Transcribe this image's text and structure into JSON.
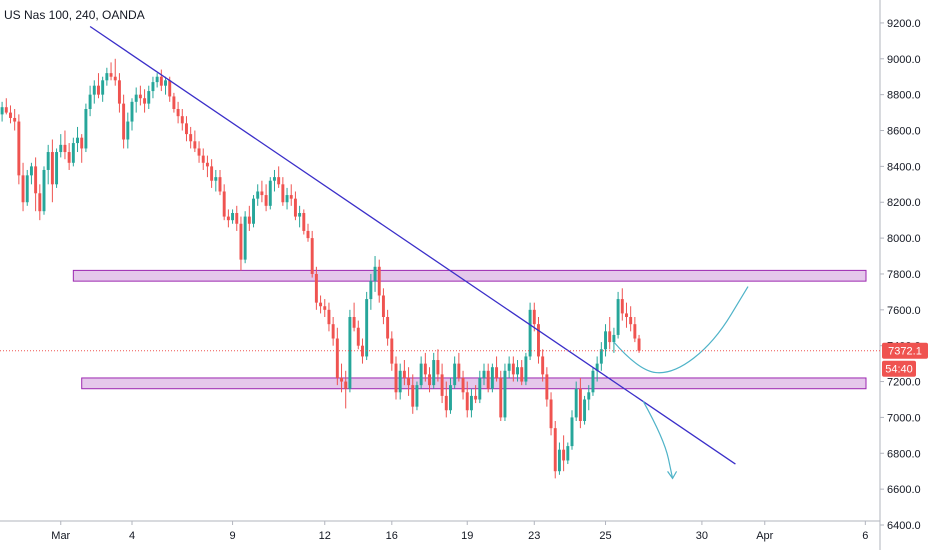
{
  "chart_data": {
    "type": "candlestick",
    "title": "US Nas 100, 240, OANDA",
    "price_axis": {
      "ylim": [
        6400,
        9300
      ],
      "ticks": [
        6400,
        6600,
        6800,
        7000,
        7200,
        7400,
        7600,
        7800,
        8000,
        8200,
        8400,
        8600,
        8800,
        9000,
        9200
      ],
      "tick_labels": [
        "6400.0",
        "6600.0",
        "6800.0",
        "7000.0",
        "7200.0",
        "7400.0",
        "7600.0",
        "7800.0",
        "8000.0",
        "8200.0",
        "8400.0",
        "8600.0",
        "8800.0",
        "9000.0",
        "9200.0"
      ]
    },
    "time_axis": {
      "bar_count": 210,
      "labels": [
        {
          "label": "Mar",
          "bar": 14
        },
        {
          "label": "4",
          "bar": 31
        },
        {
          "label": "9",
          "bar": 55
        },
        {
          "label": "12",
          "bar": 77
        },
        {
          "label": "16",
          "bar": 93
        },
        {
          "label": "19",
          "bar": 111
        },
        {
          "label": "23",
          "bar": 127
        },
        {
          "label": "25",
          "bar": 144
        },
        {
          "label": "30",
          "bar": 167
        },
        {
          "label": "Apr",
          "bar": 182
        },
        {
          "label": "6",
          "bar": 206
        }
      ]
    },
    "current_price": {
      "value": 7372.1,
      "label": "7372.1",
      "countdown": "54:40"
    },
    "zones": [
      {
        "low": 7760,
        "high": 7820,
        "bar_from": 17,
        "bar_to": 210
      },
      {
        "low": 7160,
        "high": 7220,
        "bar_from": 19,
        "bar_to": 210
      }
    ],
    "trendline": {
      "from": {
        "bar": 21,
        "value": 9180
      },
      "to": {
        "bar": 175,
        "value": 6740
      }
    },
    "projections": [
      {
        "points": [
          {
            "bar": 146,
            "value": 7420
          },
          {
            "bar": 152,
            "value": 7260
          },
          {
            "bar": 160,
            "value": 7240
          },
          {
            "bar": 170,
            "value": 7420
          },
          {
            "bar": 178,
            "value": 7730
          }
        ]
      },
      {
        "points": [
          {
            "bar": 153,
            "value": 7090
          },
          {
            "bar": 158,
            "value": 6880
          },
          {
            "bar": 160,
            "value": 6660
          }
        ]
      }
    ],
    "colors": {
      "up": "#26a69a",
      "down": "#ef5350",
      "zone_fill": "#e1bee7",
      "zone_border": "#9c27b0",
      "trendline": "#3b2fc9",
      "projection": "#4fb3c8",
      "price_line": "#ef5350",
      "badge": "#ef5350"
    },
    "candles": [
      [
        8690,
        8760,
        8650,
        8730
      ],
      [
        8730,
        8780,
        8690,
        8700
      ],
      [
        8700,
        8740,
        8640,
        8670
      ],
      [
        8670,
        8720,
        8600,
        8650
      ],
      [
        8650,
        8690,
        8300,
        8350
      ],
      [
        8350,
        8420,
        8150,
        8200
      ],
      [
        8200,
        8380,
        8180,
        8350
      ],
      [
        8350,
        8420,
        8300,
        8400
      ],
      [
        8400,
        8450,
        8150,
        8250
      ],
      [
        8250,
        8300,
        8100,
        8150
      ],
      [
        8150,
        8400,
        8130,
        8380
      ],
      [
        8380,
        8520,
        8300,
        8480
      ],
      [
        8480,
        8550,
        8200,
        8300
      ],
      [
        8300,
        8500,
        8280,
        8480
      ],
      [
        8480,
        8580,
        8450,
        8520
      ],
      [
        8520,
        8600,
        8440,
        8480
      ],
      [
        8480,
        8530,
        8380,
        8420
      ],
      [
        8420,
        8560,
        8400,
        8530
      ],
      [
        8530,
        8620,
        8480,
        8560
      ],
      [
        8560,
        8580,
        8420,
        8500
      ],
      [
        8500,
        8750,
        8480,
        8720
      ],
      [
        8720,
        8850,
        8680,
        8800
      ],
      [
        8800,
        8880,
        8750,
        8850
      ],
      [
        8850,
        8920,
        8780,
        8800
      ],
      [
        8800,
        8900,
        8760,
        8880
      ],
      [
        8880,
        8950,
        8850,
        8920
      ],
      [
        8920,
        8980,
        8880,
        8900
      ],
      [
        8900,
        9000,
        8850,
        8880
      ],
      [
        8880,
        8920,
        8700,
        8750
      ],
      [
        8750,
        8800,
        8500,
        8550
      ],
      [
        8550,
        8700,
        8500,
        8650
      ],
      [
        8650,
        8780,
        8600,
        8760
      ],
      [
        8760,
        8840,
        8700,
        8800
      ],
      [
        8800,
        8850,
        8740,
        8780
      ],
      [
        8780,
        8830,
        8700,
        8750
      ],
      [
        8750,
        8850,
        8720,
        8820
      ],
      [
        8820,
        8900,
        8780,
        8870
      ],
      [
        8870,
        8920,
        8840,
        8900
      ],
      [
        8900,
        8940,
        8820,
        8850
      ],
      [
        8850,
        8900,
        8800,
        8880
      ],
      [
        8880,
        8900,
        8760,
        8790
      ],
      [
        8790,
        8810,
        8700,
        8720
      ],
      [
        8720,
        8760,
        8640,
        8680
      ],
      [
        8680,
        8720,
        8600,
        8640
      ],
      [
        8640,
        8680,
        8540,
        8580
      ],
      [
        8580,
        8620,
        8500,
        8540
      ],
      [
        8540,
        8600,
        8480,
        8500
      ],
      [
        8500,
        8540,
        8420,
        8460
      ],
      [
        8460,
        8500,
        8380,
        8420
      ],
      [
        8420,
        8460,
        8340,
        8400
      ],
      [
        8400,
        8440,
        8280,
        8320
      ],
      [
        8320,
        8380,
        8260,
        8340
      ],
      [
        8340,
        8380,
        8240,
        8260
      ],
      [
        8260,
        8300,
        8100,
        8120
      ],
      [
        8120,
        8160,
        8060,
        8100
      ],
      [
        8100,
        8160,
        8080,
        8140
      ],
      [
        8140,
        8180,
        8040,
        8080
      ],
      [
        8080,
        8120,
        7820,
        7880
      ],
      [
        7880,
        8150,
        7860,
        8120
      ],
      [
        8120,
        8180,
        8040,
        8080
      ],
      [
        8080,
        8240,
        8060,
        8220
      ],
      [
        8220,
        8300,
        8180,
        8260
      ],
      [
        8260,
        8320,
        8200,
        8240
      ],
      [
        8240,
        8300,
        8150,
        8180
      ],
      [
        8180,
        8340,
        8160,
        8320
      ],
      [
        8320,
        8380,
        8260,
        8340
      ],
      [
        8340,
        8400,
        8280,
        8300
      ],
      [
        8300,
        8340,
        8180,
        8200
      ],
      [
        8200,
        8280,
        8160,
        8240
      ],
      [
        8240,
        8300,
        8180,
        8220
      ],
      [
        8220,
        8260,
        8100,
        8120
      ],
      [
        8120,
        8180,
        8060,
        8140
      ],
      [
        8140,
        8160,
        8020,
        8040
      ],
      [
        8040,
        8080,
        7980,
        8000
      ],
      [
        8000,
        8040,
        7780,
        7800
      ],
      [
        7800,
        7840,
        7600,
        7640
      ],
      [
        7640,
        7680,
        7580,
        7620
      ],
      [
        7620,
        7660,
        7560,
        7600
      ],
      [
        7600,
        7640,
        7480,
        7520
      ],
      [
        7520,
        7560,
        7400,
        7440
      ],
      [
        7440,
        7500,
        7180,
        7220
      ],
      [
        7220,
        7300,
        7140,
        7200
      ],
      [
        7200,
        7260,
        7050,
        7160
      ],
      [
        7160,
        7600,
        7140,
        7560
      ],
      [
        7560,
        7640,
        7480,
        7500
      ],
      [
        7500,
        7540,
        7380,
        7400
      ],
      [
        7400,
        7440,
        7300,
        7340
      ],
      [
        7340,
        7700,
        7320,
        7660
      ],
      [
        7660,
        7800,
        7600,
        7760
      ],
      [
        7760,
        7900,
        7700,
        7840
      ],
      [
        7840,
        7880,
        7640,
        7680
      ],
      [
        7680,
        7720,
        7520,
        7560
      ],
      [
        7560,
        7600,
        7400,
        7440
      ],
      [
        7440,
        7480,
        7260,
        7300
      ],
      [
        7300,
        7340,
        7100,
        7140
      ],
      [
        7140,
        7300,
        7100,
        7260
      ],
      [
        7260,
        7320,
        7180,
        7220
      ],
      [
        7220,
        7280,
        7120,
        7180
      ],
      [
        7180,
        7240,
        7020,
        7060
      ],
      [
        7060,
        7200,
        7040,
        7180
      ],
      [
        7180,
        7340,
        7160,
        7300
      ],
      [
        7300,
        7360,
        7200,
        7240
      ],
      [
        7240,
        7280,
        7140,
        7180
      ],
      [
        7180,
        7360,
        7160,
        7320
      ],
      [
        7320,
        7380,
        7200,
        7240
      ],
      [
        7240,
        7300,
        7080,
        7120
      ],
      [
        7120,
        7200,
        7000,
        7040
      ],
      [
        7040,
        7220,
        7020,
        7180
      ],
      [
        7180,
        7340,
        7160,
        7300
      ],
      [
        7300,
        7360,
        7200,
        7220
      ],
      [
        7220,
        7260,
        7100,
        7140
      ],
      [
        7140,
        7200,
        7000,
        7040
      ],
      [
        7040,
        7160,
        7000,
        7120
      ],
      [
        7120,
        7180,
        7080,
        7100
      ],
      [
        7100,
        7260,
        7080,
        7220
      ],
      [
        7220,
        7300,
        7180,
        7260
      ],
      [
        7260,
        7300,
        7140,
        7160
      ],
      [
        7160,
        7300,
        7140,
        7280
      ],
      [
        7280,
        7340,
        7200,
        7220
      ],
      [
        7220,
        7260,
        6980,
        7000
      ],
      [
        7000,
        7300,
        6980,
        7260
      ],
      [
        7260,
        7340,
        7220,
        7300
      ],
      [
        7300,
        7340,
        7200,
        7240
      ],
      [
        7240,
        7320,
        7200,
        7280
      ],
      [
        7280,
        7320,
        7180,
        7200
      ],
      [
        7200,
        7360,
        7180,
        7340
      ],
      [
        7340,
        7640,
        7320,
        7600
      ],
      [
        7600,
        7640,
        7480,
        7520
      ],
      [
        7520,
        7560,
        7300,
        7340
      ],
      [
        7340,
        7380,
        7200,
        7240
      ],
      [
        7240,
        7280,
        7060,
        7100
      ],
      [
        7100,
        7140,
        6900,
        6940
      ],
      [
        6940,
        6980,
        6660,
        6700
      ],
      [
        6700,
        6860,
        6680,
        6820
      ],
      [
        6820,
        6900,
        6700,
        6760
      ],
      [
        6760,
        6860,
        6740,
        6840
      ],
      [
        6840,
        7040,
        6820,
        7000
      ],
      [
        7000,
        7200,
        6980,
        7160
      ],
      [
        7160,
        7220,
        6940,
        6980
      ],
      [
        6980,
        7120,
        6960,
        7100
      ],
      [
        7100,
        7180,
        7040,
        7140
      ],
      [
        7140,
        7280,
        7120,
        7260
      ],
      [
        7260,
        7340,
        7200,
        7300
      ],
      [
        7300,
        7420,
        7260,
        7380
      ],
      [
        7380,
        7520,
        7340,
        7480
      ],
      [
        7480,
        7560,
        7380,
        7420
      ],
      [
        7420,
        7500,
        7360,
        7460
      ],
      [
        7460,
        7700,
        7440,
        7660
      ],
      [
        7660,
        7720,
        7540,
        7580
      ],
      [
        7580,
        7640,
        7500,
        7560
      ],
      [
        7560,
        7620,
        7480,
        7520
      ],
      [
        7520,
        7560,
        7420,
        7440
      ],
      [
        7440,
        7460,
        7360,
        7372
      ]
    ]
  }
}
